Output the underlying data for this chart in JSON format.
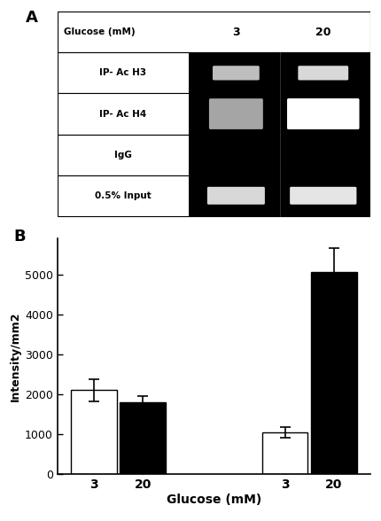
{
  "panel_a_rows": [
    {
      "label": "Glucose (mM)",
      "is_header": true,
      "col3": "3",
      "col20": "20"
    },
    {
      "label": "IP- Ac H3",
      "has_bands": true,
      "band_style": "thin"
    },
    {
      "label": "IP- Ac H4",
      "has_bands": true,
      "band_style": "thick"
    },
    {
      "label": "IgG",
      "has_bands": false
    },
    {
      "label": "0.5% Input",
      "has_bands": true,
      "band_style": "thin_wide"
    }
  ],
  "panel_b": {
    "groups": [
      {
        "bars": [
          {
            "x_label": "3",
            "value": 2100,
            "error": 280,
            "color": "white",
            "edgecolor": "black"
          },
          {
            "x_label": "20",
            "value": 1800,
            "error": 160,
            "color": "black",
            "edgecolor": "black"
          }
        ]
      },
      {
        "bars": [
          {
            "x_label": "3",
            "value": 1050,
            "error": 130,
            "color": "white",
            "edgecolor": "black"
          },
          {
            "x_label": "20",
            "value": 5050,
            "error": 600,
            "color": "black",
            "edgecolor": "black"
          }
        ]
      }
    ],
    "ylabel": "Intensity/mm2",
    "xlabel": "Glucose (mM)",
    "ylim": [
      0,
      5900
    ],
    "yticks": [
      0,
      1000,
      2000,
      3000,
      4000,
      5000
    ],
    "bar_width": 0.6,
    "group_centers": [
      1.0,
      3.5
    ],
    "bar_offsets": [
      -0.32,
      0.32
    ]
  },
  "label_A": "A",
  "label_B": "B",
  "bg_color": "#ffffff",
  "text_color": "#000000",
  "font_family": "DejaVu Sans"
}
